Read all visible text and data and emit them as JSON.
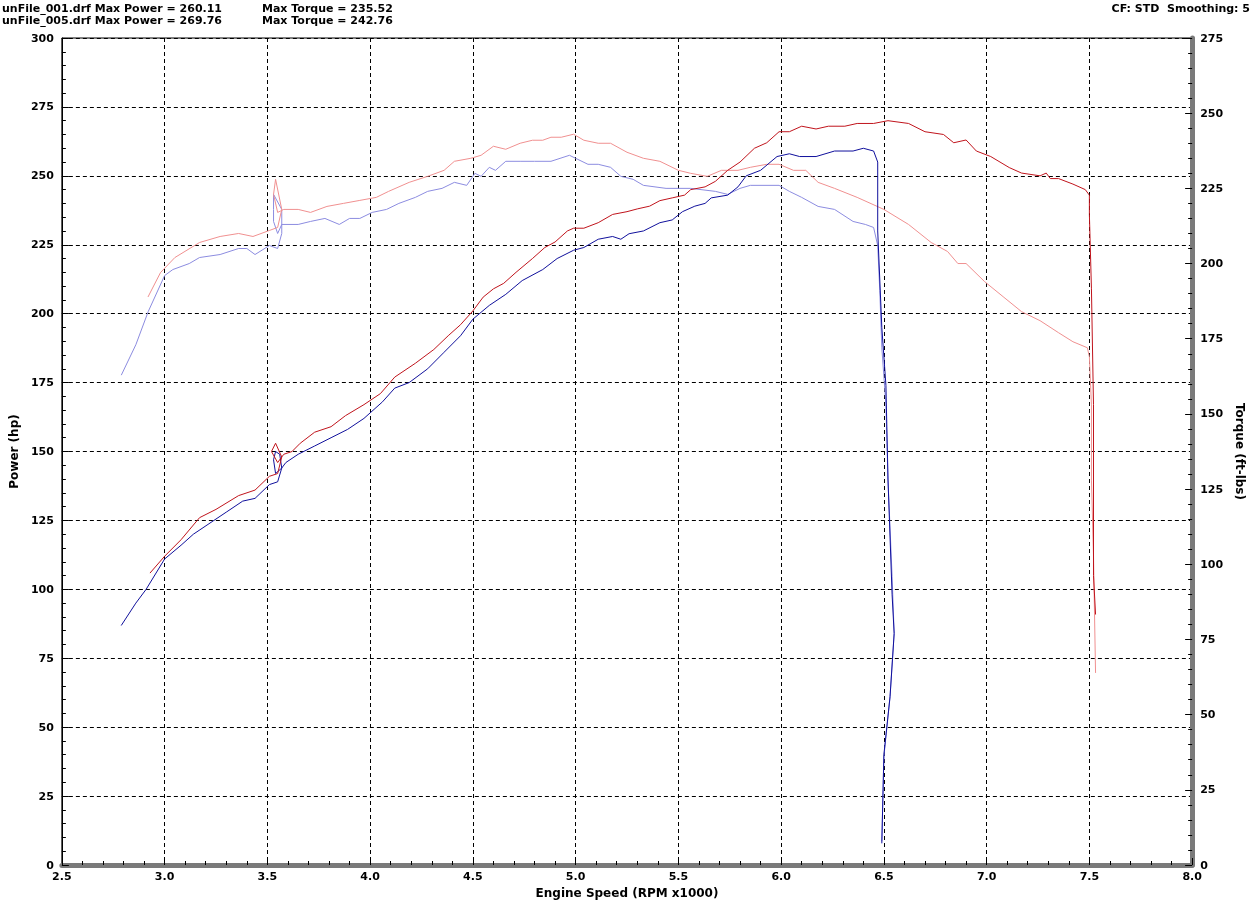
{
  "chart_data": {
    "type": "line",
    "xlabel": "Engine Speed (RPM x1000)",
    "ylabel": "Power (hp)",
    "y2label": "Torque (ft-lbs)",
    "annotations": [
      "unFile_001.drf Max Power = 260.11",
      "Max Torque = 235.52",
      "CF: STD  Smoothing: 5",
      "unFile_005.drf Max Power = 269.76",
      "Max Torque = 242.76"
    ],
    "xlim": [
      2.5,
      8
    ],
    "xticks": [
      2.5,
      {
        "value": 3,
        "label": "3.0"
      },
      3.5,
      {
        "value": 4,
        "label": "4.0"
      },
      4.5,
      {
        "value": 5,
        "label": "5.0"
      },
      5.5,
      {
        "value": 6,
        "label": "6.0"
      },
      6.5,
      {
        "value": 7,
        "label": "7.0"
      },
      7.5,
      {
        "value": 8,
        "label": "8.0"
      }
    ],
    "ylim": [
      0,
      300
    ],
    "yticks": [
      0,
      25,
      50,
      75,
      100,
      125,
      150,
      175,
      200,
      225,
      250,
      275,
      300
    ],
    "y2lim": [
      0,
      275
    ],
    "y2ticks": [
      0,
      25,
      50,
      75,
      100,
      125,
      150,
      175,
      200,
      225,
      250,
      275
    ],
    "grid": true,
    "series": [
      {
        "color": "#8c8ce0",
        "axis": "y2",
        "x": [
          2.79,
          2.86,
          2.92,
          3.0,
          3.04,
          3.12,
          3.17,
          3.27,
          3.36,
          3.4,
          3.44,
          3.51,
          3.55,
          3.57,
          3.57,
          3.53,
          3.53,
          3.53,
          3.55,
          3.57,
          3.65,
          3.71,
          3.78,
          3.85,
          3.9,
          3.95,
          4.01,
          4.08,
          4.14,
          4.22,
          4.28,
          4.35,
          4.41,
          4.47,
          4.51,
          4.54,
          4.58,
          4.61,
          4.66,
          4.73,
          4.8,
          4.88,
          4.97,
          5.0,
          5.06,
          5.11,
          5.17,
          5.22,
          5.28,
          5.33,
          5.44,
          5.56,
          5.68,
          5.74,
          5.8,
          5.85,
          5.99,
          6.04,
          6.1,
          6.18,
          6.26,
          6.35,
          6.41,
          6.45,
          6.47,
          6.48,
          6.49,
          6.51,
          6.52,
          6.54,
          6.55,
          6.53,
          6.5,
          6.49
        ],
        "values": [
          163,
          173,
          184,
          196,
          198,
          200,
          202,
          203,
          205,
          205,
          203,
          206,
          205,
          210,
          218,
          223,
          218,
          214,
          210,
          213,
          213,
          214,
          215,
          213,
          215,
          215,
          217,
          218,
          220,
          222,
          224,
          225,
          227,
          226,
          230,
          229,
          232,
          231,
          234,
          234,
          234,
          234,
          236,
          235,
          233,
          233,
          232,
          229,
          228,
          226,
          225,
          225,
          224,
          223,
          225,
          226,
          226,
          224,
          222,
          219,
          218,
          214,
          213,
          212,
          206,
          191,
          172,
          153,
          128,
          96,
          77,
          56,
          36,
          8
        ]
      },
      {
        "color": "#f09090",
        "axis": "y2",
        "x": [
          2.92,
          2.98,
          3.05,
          3.17,
          3.27,
          3.36,
          3.43,
          3.51,
          3.55,
          3.57,
          3.54,
          3.53,
          3.55,
          3.58,
          3.65,
          3.71,
          3.79,
          3.87,
          3.95,
          4.03,
          4.09,
          4.19,
          4.28,
          4.36,
          4.41,
          4.49,
          4.54,
          4.6,
          4.66,
          4.73,
          4.79,
          4.84,
          4.88,
          4.93,
          4.99,
          5.04,
          5.11,
          5.17,
          5.25,
          5.33,
          5.41,
          5.5,
          5.56,
          5.64,
          5.71,
          5.79,
          5.85,
          5.93,
          5.99,
          6.06,
          6.12,
          6.18,
          6.26,
          6.37,
          6.5,
          6.62,
          6.73,
          6.81,
          6.86,
          6.9,
          6.99,
          7.08,
          7.17,
          7.26,
          7.35,
          7.42,
          7.49,
          7.5,
          7.51,
          7.51,
          7.52,
          7.53
        ],
        "values": [
          189,
          197,
          202,
          207,
          209,
          210,
          209,
          211,
          212,
          218,
          228,
          223,
          217,
          218,
          218,
          217,
          219,
          220,
          221,
          222,
          224,
          227,
          229,
          231,
          234,
          235,
          236,
          239,
          238,
          240,
          241,
          241,
          242,
          242,
          243,
          241,
          240,
          240,
          237,
          235,
          234,
          231,
          230,
          229,
          231,
          231,
          232,
          233,
          233,
          231,
          231,
          227,
          225,
          222,
          218,
          213,
          207,
          204,
          200,
          200,
          194,
          189,
          184,
          181,
          177,
          174,
          172,
          169,
          153,
          128,
          103,
          64
        ]
      },
      {
        "color": "#10109c",
        "x": [
          2.79,
          2.86,
          2.91,
          3.0,
          3.08,
          3.14,
          3.24,
          3.3,
          3.38,
          3.44,
          3.51,
          3.55,
          3.57,
          3.56,
          3.54,
          3.53,
          3.54,
          3.57,
          3.59,
          3.65,
          3.73,
          3.81,
          3.89,
          3.97,
          4.06,
          4.12,
          4.19,
          4.28,
          4.36,
          4.44,
          4.5,
          4.58,
          4.66,
          4.74,
          4.84,
          4.91,
          4.99,
          5.04,
          5.11,
          5.18,
          5.22,
          5.26,
          5.33,
          5.41,
          5.47,
          5.52,
          5.58,
          5.63,
          5.66,
          5.74,
          5.79,
          5.83,
          5.9,
          5.98,
          6.04,
          6.09,
          6.17,
          6.26,
          6.35,
          6.4,
          6.45,
          6.47,
          6.47,
          6.49,
          6.51,
          6.52,
          6.54,
          6.55,
          6.53,
          6.5,
          6.49
        ],
        "values": [
          87,
          95,
          100,
          111,
          116,
          120,
          125,
          128,
          132,
          133,
          138,
          139,
          144,
          149,
          150,
          147,
          142,
          144,
          146,
          149,
          152,
          155,
          158,
          162,
          168,
          173,
          175,
          180,
          186,
          192,
          198,
          203,
          207,
          212,
          216,
          220,
          223,
          224,
          227,
          228,
          227,
          229,
          230,
          233,
          234,
          237,
          239,
          240,
          242,
          243,
          246,
          250,
          252,
          257,
          258,
          257,
          257,
          259,
          259,
          260,
          259,
          255,
          230,
          195,
          174,
          140,
          98,
          84,
          61,
          40,
          8
        ]
      },
      {
        "color": "#c0141c",
        "x": [
          2.93,
          3.0,
          3.08,
          3.17,
          3.25,
          3.36,
          3.44,
          3.51,
          3.55,
          3.57,
          3.54,
          3.52,
          3.55,
          3.58,
          3.62,
          3.66,
          3.73,
          3.81,
          3.88,
          3.97,
          4.05,
          4.12,
          4.22,
          4.31,
          4.38,
          4.44,
          4.5,
          4.55,
          4.6,
          4.65,
          4.71,
          4.79,
          4.85,
          4.9,
          4.96,
          4.99,
          5.04,
          5.11,
          5.18,
          5.25,
          5.3,
          5.36,
          5.41,
          5.47,
          5.53,
          5.56,
          5.63,
          5.68,
          5.74,
          5.8,
          5.87,
          5.93,
          5.99,
          6.04,
          6.1,
          6.17,
          6.23,
          6.31,
          6.37,
          6.45,
          6.52,
          6.62,
          6.7,
          6.79,
          6.84,
          6.9,
          6.95,
          7.02,
          7.11,
          7.17,
          7.26,
          7.29,
          7.31,
          7.35,
          7.42,
          7.48,
          7.5,
          7.5,
          7.51,
          7.52,
          7.52,
          7.53
        ],
        "values": [
          106,
          112,
          118,
          126,
          129,
          134,
          136,
          141,
          142,
          148,
          153,
          150,
          146,
          149,
          150,
          153,
          157,
          159,
          163,
          167,
          171,
          177,
          182,
          187,
          192,
          196,
          201,
          206,
          209,
          211,
          215,
          220,
          224,
          226,
          230,
          231,
          231,
          233,
          236,
          237,
          238,
          239,
          241,
          242,
          243,
          245,
          246,
          248,
          252,
          255,
          260,
          262,
          266,
          266,
          268,
          267,
          268,
          268,
          269,
          269,
          270,
          269,
          266,
          265,
          262,
          263,
          259,
          257,
          253,
          251,
          250,
          251,
          249,
          249,
          247,
          245,
          243,
          236,
          209,
          167,
          105,
          91
        ]
      }
    ]
  }
}
